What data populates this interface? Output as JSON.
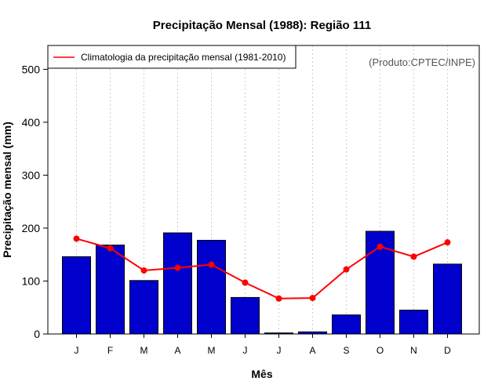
{
  "chart_data": {
    "type": "bar",
    "title": "Precipitação Mensal (1988): Região 111",
    "xlabel": "Mês",
    "ylabel": "Precipitação mensal (mm)",
    "ylim": [
      0,
      545
    ],
    "yticks": [
      0,
      100,
      200,
      300,
      400,
      500
    ],
    "categories": [
      "J",
      "F",
      "M",
      "A",
      "M",
      "J",
      "J",
      "A",
      "S",
      "O",
      "N",
      "D"
    ],
    "series": [
      {
        "name": "Precipitação mensal 1988",
        "type": "bar",
        "color": "#0000CC",
        "values": [
          146,
          168,
          101,
          191,
          177,
          69,
          2,
          4,
          36,
          194,
          45,
          132
        ]
      },
      {
        "name": "Climatologia da precipitação mensal (1981-2010)",
        "type": "line",
        "color": "#FF0000",
        "values": [
          180,
          162,
          120,
          125,
          131,
          97,
          67,
          68,
          122,
          165,
          146,
          173
        ]
      }
    ],
    "legend": {
      "entries": [
        "Climatologia da precipitação mensal (1981-2010)"
      ],
      "position": "top-left"
    },
    "grid": "vertical dotted",
    "annotation": "(Produto:CPTEC/INPE)"
  }
}
